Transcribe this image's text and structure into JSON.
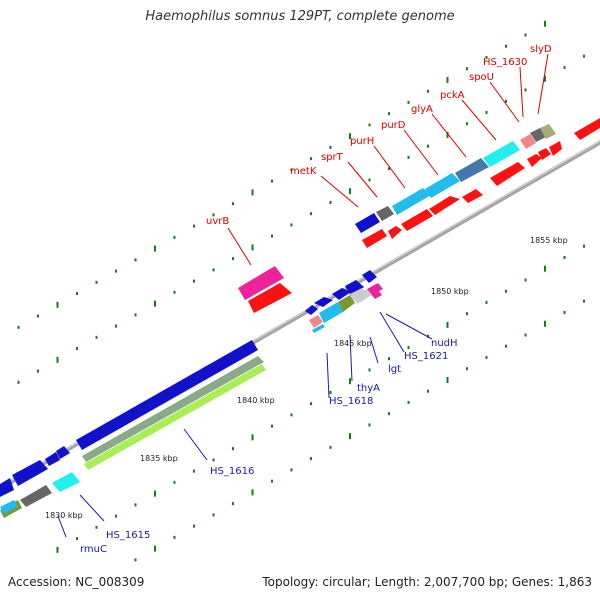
{
  "title": "Haemophilus somnus 129PT, complete genome",
  "footer": {
    "accession": "Accession: NC_008309",
    "summary": "Topology: circular; Length: 2,007,700 bp; Genes: 1,863"
  },
  "colors": {
    "backbone": "#a6a6a6",
    "tick": "#1a7a1a",
    "top_label": "#d90000",
    "bottom_label": "#1a1aa6"
  },
  "scale": {
    "ticks": [
      {
        "kbp": 1830,
        "label": "1830 kbp"
      },
      {
        "kbp": 1835,
        "label": "1835 kbp"
      },
      {
        "kbp": 1840,
        "label": "1840 kbp"
      },
      {
        "kbp": 1845,
        "label": "1845 kbp"
      },
      {
        "kbp": 1850,
        "label": "1850 kbp"
      },
      {
        "kbp": 1855,
        "label": "1855 kbp"
      }
    ]
  },
  "top_genes": [
    {
      "name": "uvrB"
    },
    {
      "name": "metK"
    },
    {
      "name": "sprT"
    },
    {
      "name": "purH"
    },
    {
      "name": "purD"
    },
    {
      "name": "glyA"
    },
    {
      "name": "pckA"
    },
    {
      "name": "spoU"
    },
    {
      "name": "HS_1630"
    },
    {
      "name": "slyD"
    }
  ],
  "bottom_genes": [
    {
      "name": "rmuC"
    },
    {
      "name": "HS_1615"
    },
    {
      "name": "HS_1616"
    },
    {
      "name": "HS_1618"
    },
    {
      "name": "thyA"
    },
    {
      "name": "lgt"
    },
    {
      "name": "HS_1621"
    },
    {
      "name": "nudH"
    }
  ]
}
